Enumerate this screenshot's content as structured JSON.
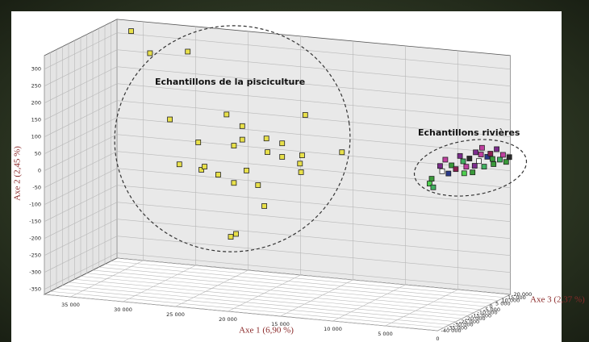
{
  "chart_data": {
    "type": "scatter3d",
    "x_label": "Axe 1 (6,90 %)",
    "y_label": "Axe 2 (2,45 %)",
    "z_label": "Axe 3 (2,37 %)",
    "annotations": [
      "Echantillons de la pisciculture",
      "Echantillons rivières"
    ],
    "xlim": [
      0,
      37500
    ],
    "ylim": [
      -365,
      340
    ],
    "zlim": [
      -40000,
      20000
    ],
    "xticks": [
      {
        "value": 35000,
        "label": "35 000"
      },
      {
        "value": 30000,
        "label": "30 000"
      },
      {
        "value": 25000,
        "label": "25 000"
      },
      {
        "value": 20000,
        "label": "20 000"
      },
      {
        "value": 15000,
        "label": "15 000"
      },
      {
        "value": 10000,
        "label": "10 000"
      },
      {
        "value": 5000,
        "label": "5 000"
      },
      0
    ],
    "yticks": [
      300,
      250,
      200,
      150,
      100,
      50,
      0,
      -50,
      -100,
      -150,
      -200,
      -250,
      -300,
      -350
    ],
    "zticks": [
      {
        "value": 20000,
        "label": "20 000"
      },
      {
        "value": 15000,
        "label": "15 000"
      },
      {
        "value": 10000,
        "label": "10 000"
      },
      {
        "value": 5000,
        "label": "5 000"
      },
      0,
      {
        "value": -5000,
        "label": "-5 000"
      },
      {
        "value": -10000,
        "label": "-10 000"
      },
      {
        "value": -15000,
        "label": "-15 000"
      },
      {
        "value": -20000,
        "label": "-20 000"
      },
      {
        "value": -25000,
        "label": "-25 000"
      },
      {
        "value": -30000,
        "label": "-30 000"
      },
      {
        "value": -35000,
        "label": "-35 000"
      },
      {
        "value": -40000,
        "label": "-40 000"
      }
    ],
    "grid": true,
    "series": [
      {
        "color": "#e8e04a",
        "x": [
          35000,
          33200,
          29600,
          31300,
          28600,
          25900,
          24400,
          24400,
          25200,
          22100,
          20600,
          18400,
          30400,
          28300,
          28000,
          26700,
          25200,
          24000,
          22000,
          20600,
          18700,
          18900,
          18800,
          22900,
          22300,
          14900,
          25000,
          25500
        ],
        "y": [
          330,
          270,
          285,
          80,
          20,
          110,
          80,
          40,
          20,
          50,
          40,
          130,
          -50,
          -60,
          -50,
          -70,
          -90,
          -50,
          10,
          0,
          10,
          -15,
          -40,
          -90,
          -150,
          30,
          -240,
          -250
        ],
        "z": [
          10000,
          10000,
          10000,
          10000,
          10000,
          10000,
          10000,
          10000,
          10000,
          10000,
          10000,
          10000,
          10000,
          10000,
          10000,
          10000,
          10000,
          10000,
          10000,
          10000,
          10000,
          10000,
          10000,
          10000,
          10000,
          10000,
          10000,
          10000
        ]
      },
      {
        "colors": [
          "#4fd04f",
          "#40b060",
          "#3a9a3a",
          "#7b2b8c",
          "#ffffff",
          "#c040a0",
          "#2a3a8a",
          "#3a9a3a",
          "#8a2050",
          "#7b2b8c",
          "#40b060",
          "#c040a0",
          "#2a2a2a",
          "#3a9a3a",
          "#7b2b8c",
          "#ffffff",
          "#c040a0",
          "#40b060",
          "#2a3a8a",
          "#8a2050",
          "#3a9a3a",
          "#7b2b8c",
          "#40b060",
          "#c040a0",
          "#3a9a3a",
          "#2a2a2a",
          "#7b2b8c",
          "#4fd04f",
          "#c040a0",
          "#3a9a3a"
        ],
        "x": [
          7700,
          7350,
          7500,
          6700,
          6500,
          6200,
          5900,
          5600,
          5200,
          4800,
          4500,
          4200,
          3900,
          3600,
          3300,
          3000,
          2700,
          2500,
          2200,
          1900,
          1600,
          1300,
          1000,
          700,
          400,
          100,
          3400,
          4400,
          2800,
          1700
        ],
        "y": [
          -60,
          -70,
          -45,
          -5,
          -20,
          15,
          -25,
          0,
          -10,
          30,
          15,
          0,
          25,
          -15,
          45,
          20,
          60,
          5,
          35,
          45,
          15,
          60,
          30,
          45,
          25,
          40,
          5,
          -20,
          40,
          30
        ],
        "z": [
          20000,
          20000,
          20000,
          20000,
          20000,
          20000,
          20000,
          20000,
          20000,
          20000,
          20000,
          20000,
          20000,
          20000,
          20000,
          20000,
          20000,
          20000,
          20000,
          20000,
          20000,
          20000,
          20000,
          20000,
          20000,
          20000,
          20000,
          20000,
          20000,
          20000
        ]
      }
    ]
  }
}
